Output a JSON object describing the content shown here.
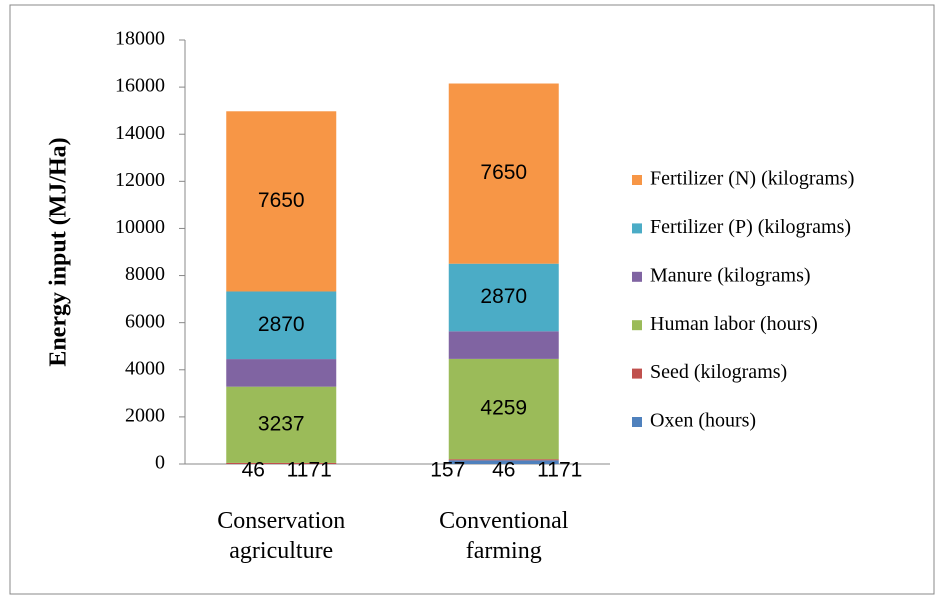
{
  "chart_data": {
    "type": "stacked_bar",
    "y_label": "Energy input (MJ/Ha)",
    "categories": [
      "Conservation agriculture",
      "Conventional farming"
    ],
    "series": [
      {
        "name": "Oxen (hours)",
        "color": "#4f81bd",
        "values": [
          null,
          157
        ]
      },
      {
        "name": "Seed (kilograms)",
        "color": "#c0504d",
        "values": [
          46,
          46
        ]
      },
      {
        "name": "Human labor (hours)",
        "color": "#9bbb59",
        "values": [
          3237,
          4259
        ]
      },
      {
        "name": "Manure (kilograms)",
        "color": "#8064a2",
        "values": [
          1171,
          1171
        ]
      },
      {
        "name": "Fertilizer (P) (kilograms)",
        "color": "#4bacc6",
        "values": [
          2870,
          2870
        ]
      },
      {
        "name": "Fertilizer (N) (kilograms)",
        "color": "#f79646",
        "values": [
          7650,
          7650
        ]
      }
    ],
    "ylim": [
      0,
      18000
    ],
    "yticks": [
      0,
      2000,
      4000,
      6000,
      8000,
      10000,
      12000,
      14000,
      16000,
      18000
    ],
    "legend": "right"
  }
}
